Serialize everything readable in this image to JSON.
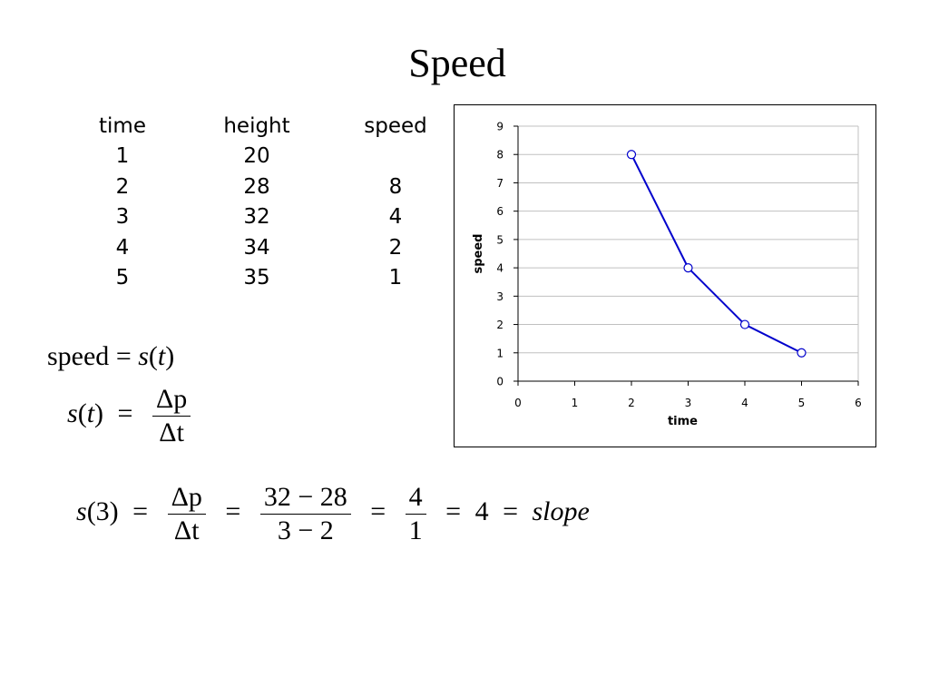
{
  "slide": {
    "title": "Speed"
  },
  "table": {
    "headers": [
      "time",
      "height",
      "speed"
    ],
    "rows": [
      [
        "1",
        "20",
        ""
      ],
      [
        "2",
        "28",
        "8"
      ],
      [
        "3",
        "32",
        "4"
      ],
      [
        "4",
        "34",
        "2"
      ],
      [
        "5",
        "35",
        "1"
      ]
    ]
  },
  "formulas": {
    "f1": {
      "lhs": "speed",
      "eq": "=",
      "s": "s",
      "lp": "(",
      "t": "t",
      "rp": ")"
    },
    "f2": {
      "s": "s",
      "lp": "(",
      "t": "t",
      "rp": ")",
      "eq": "=",
      "num": "Δp",
      "den": "Δt"
    },
    "f3": {
      "s": "s",
      "arg": "(3)",
      "eq": "=",
      "frac1_num": "Δp",
      "frac1_den": "Δt",
      "frac2_num": "32 − 28",
      "frac2_den": "3 − 2",
      "frac3_num": "4",
      "frac3_den": "1",
      "value": "4",
      "slope": "slope"
    }
  },
  "chart_data": {
    "type": "line",
    "title": "",
    "xlabel": "time",
    "ylabel": "speed",
    "xlim": [
      0,
      6
    ],
    "ylim": [
      0,
      9
    ],
    "x_ticks": [
      0,
      1,
      2,
      3,
      4,
      5,
      6
    ],
    "y_ticks": [
      0,
      1,
      2,
      3,
      4,
      5,
      6,
      7,
      8,
      9
    ],
    "grid": "horizontal",
    "legend": "none",
    "line_color": "#0000CC",
    "marker_fill": "#ffffff",
    "grid_color": "#C0C0C0",
    "series": [
      {
        "x": [
          2,
          3,
          4,
          5
        ],
        "y": [
          8,
          4,
          2,
          1
        ]
      }
    ]
  }
}
